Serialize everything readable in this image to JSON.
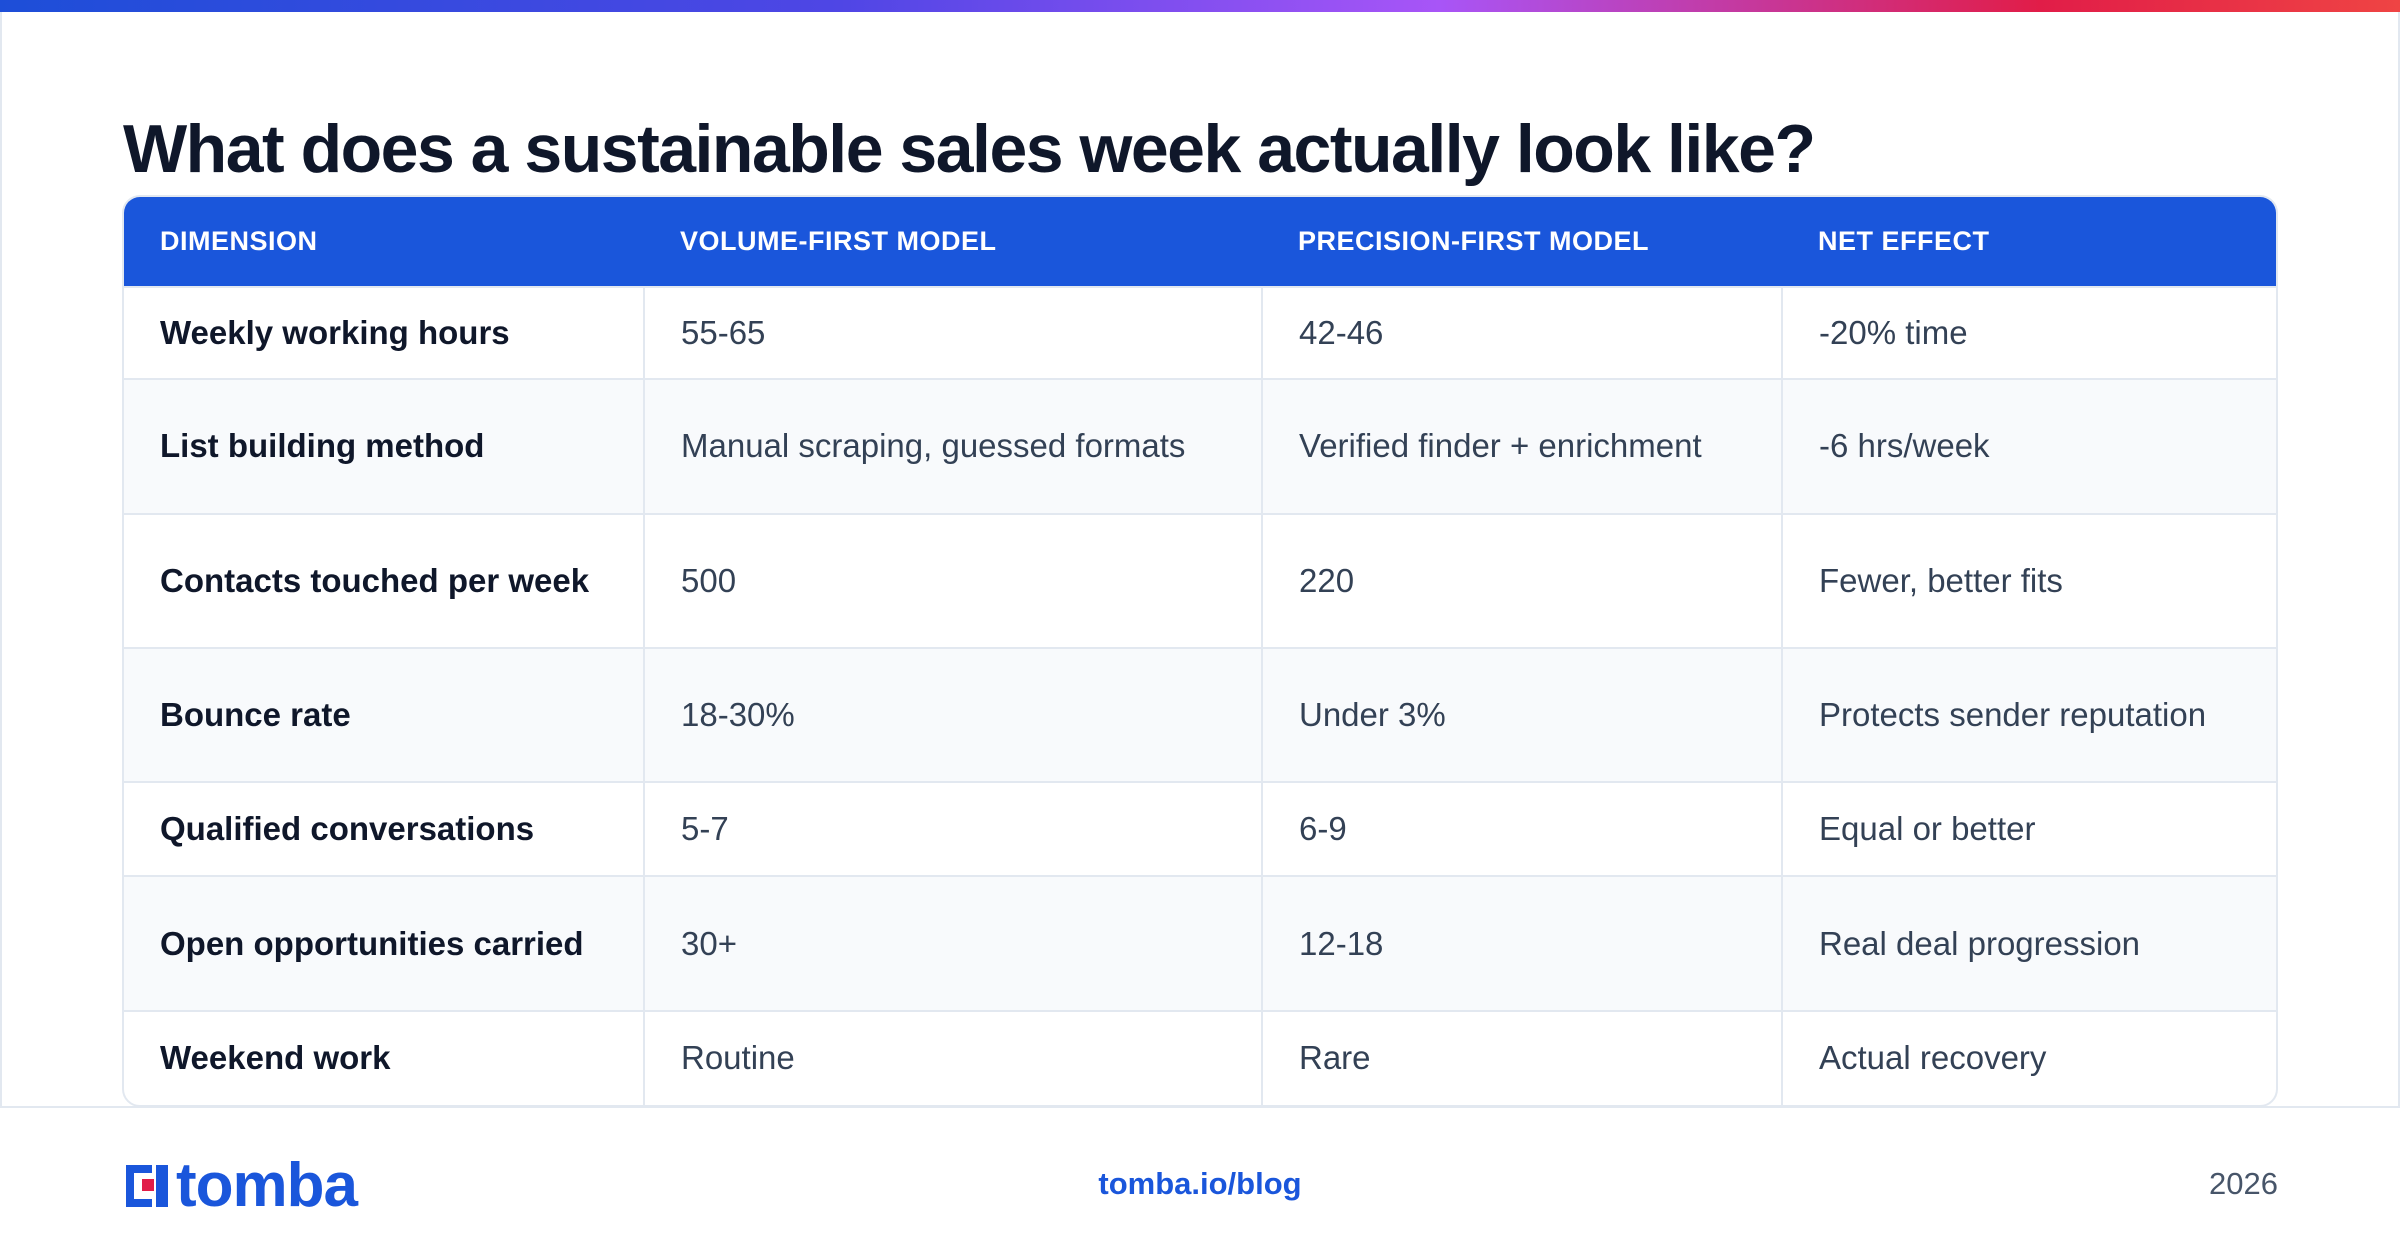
{
  "title": "What does a sustainable sales week actually look like?",
  "colors": {
    "accent": "#1a56db",
    "header_bg": "#1a56db",
    "logo_red": "#e11d48"
  },
  "table": {
    "headers": [
      "DIMENSION",
      "VOLUME-FIRST MODEL",
      "PRECISION-FIRST MODEL",
      "NET EFFECT"
    ],
    "rows": [
      [
        "Weekly working hours",
        "55-65",
        "42-46",
        "-20% time"
      ],
      [
        "List building method",
        "Manual scraping, guessed formats",
        "Verified finder + enrichment",
        "-6 hrs/week"
      ],
      [
        "Contacts touched per week",
        "500",
        "220",
        "Fewer, better fits"
      ],
      [
        "Bounce rate",
        "18-30%",
        "Under 3%",
        "Protects sender reputation"
      ],
      [
        "Qualified conversations",
        "5-7",
        "6-9",
        "Equal or better"
      ],
      [
        "Open opportunities carried",
        "30+",
        "12-18",
        "Real deal progression"
      ],
      [
        "Weekend work",
        "Routine",
        "Rare",
        "Actual recovery"
      ]
    ]
  },
  "footer": {
    "logo_text": "tomba",
    "logo_icon": "tomba-logo-icon",
    "site": "tomba.io/blog",
    "year": "2026"
  }
}
